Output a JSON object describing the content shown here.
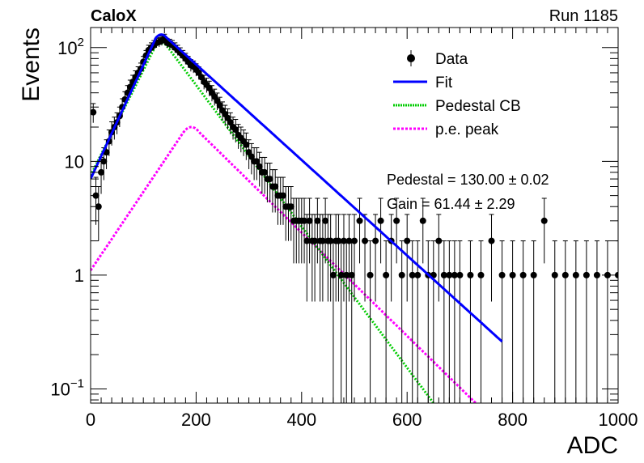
{
  "header": {
    "left_label": "CaloX",
    "right_label": "Run 1185"
  },
  "colors": {
    "data": "#000000",
    "fit": "#0000ff",
    "pedestal": "#00cc00",
    "pe_peak": "#ff00ff"
  },
  "stats": {
    "pedestal": "Pedestal = 130.00 ± 0.02",
    "gain": "Gain = 61.44 ± 2.29"
  },
  "chart_data": {
    "type": "scatter",
    "title": "",
    "xlabel": "ADC",
    "ylabel": "Events",
    "xlim": [
      0,
      1000
    ],
    "ylim": [
      0.075,
      150
    ],
    "yscale": "log",
    "grid": false,
    "legend_position": "top-right",
    "x_ticks": [
      "0",
      "200",
      "400",
      "600",
      "800",
      "1000"
    ],
    "y_ticks": [
      {
        "value": 0.1,
        "base": "10",
        "exp": "−1"
      },
      {
        "value": 1,
        "label": "1"
      },
      {
        "value": 10,
        "label": "10"
      },
      {
        "value": 100,
        "base": "10",
        "exp": "2"
      }
    ],
    "legend": [
      {
        "label": "Data",
        "style": "marker",
        "series": "data"
      },
      {
        "label": "Fit",
        "style": "line",
        "series": "fit"
      },
      {
        "label": "Pedestal CB",
        "style": "dotted",
        "series": "pedestal"
      },
      {
        "label": "p.e. peak",
        "style": "dashed",
        "series": "pe_peak"
      }
    ],
    "series": {
      "data": {
        "name": "Data",
        "x": [
          5,
          10,
          15,
          20,
          25,
          30,
          35,
          40,
          45,
          50,
          55,
          60,
          65,
          70,
          75,
          80,
          85,
          90,
          95,
          100,
          105,
          110,
          115,
          120,
          125,
          130,
          135,
          140,
          145,
          150,
          155,
          160,
          165,
          170,
          175,
          180,
          185,
          190,
          195,
          200,
          205,
          210,
          215,
          220,
          225,
          230,
          235,
          240,
          245,
          250,
          255,
          260,
          265,
          270,
          275,
          280,
          285,
          290,
          295,
          300,
          305,
          310,
          315,
          320,
          325,
          330,
          335,
          340,
          345,
          350,
          355,
          360,
          365,
          370,
          375,
          380,
          385,
          390,
          395,
          400,
          405,
          410,
          415,
          420,
          425,
          430,
          435,
          440,
          445,
          450,
          455,
          460,
          465,
          470,
          475,
          480,
          485,
          490,
          495,
          500,
          510,
          520,
          530,
          540,
          550,
          560,
          570,
          580,
          590,
          600,
          610,
          620,
          630,
          640,
          650,
          660,
          670,
          680,
          690,
          700,
          720,
          740,
          760,
          780,
          800,
          820,
          840,
          860,
          880,
          900,
          920,
          940,
          960,
          980,
          1000
        ],
        "y": [
          27,
          5,
          4,
          8,
          10,
          12,
          15,
          18,
          20,
          22,
          25,
          30,
          35,
          40,
          45,
          50,
          55,
          60,
          65,
          75,
          85,
          95,
          100,
          105,
          110,
          112,
          115,
          120,
          110,
          108,
          105,
          100,
          95,
          90,
          85,
          80,
          75,
          70,
          68,
          64,
          60,
          55,
          50,
          47,
          44,
          40,
          37,
          34,
          31,
          28,
          26,
          24,
          22,
          20,
          19,
          17,
          16,
          15,
          14,
          12,
          11,
          10,
          10,
          9,
          8,
          8,
          7,
          7,
          6,
          6,
          5,
          5,
          5,
          4,
          4,
          4,
          3,
          3,
          3,
          3,
          3,
          2,
          3,
          2,
          2,
          3,
          2,
          2,
          3,
          2,
          2,
          1,
          2,
          2,
          1,
          2,
          1,
          2,
          1,
          2,
          3,
          2,
          1,
          2,
          3,
          1,
          2,
          3,
          1,
          2,
          1,
          1,
          3,
          1,
          1,
          2,
          1,
          1,
          1,
          1,
          1,
          1,
          2,
          1,
          1,
          1,
          1,
          3,
          1,
          1,
          1,
          1,
          1,
          1,
          1
        ]
      },
      "fit": {
        "name": "Fit",
        "peak_x": 134,
        "peak_y": 130,
        "left_y0": 7,
        "slope_right_per_100": 0.42
      },
      "pedestal": {
        "name": "Pedestal CB",
        "peak_x": 134,
        "peak_y": 110,
        "end_x": 650,
        "end_y": 0.075
      },
      "pe_peak": {
        "name": "p.e. peak",
        "peak_x": 191,
        "peak_y": 20,
        "start_y": 1.1,
        "end_x": 730,
        "end_y": 0.075
      }
    }
  }
}
